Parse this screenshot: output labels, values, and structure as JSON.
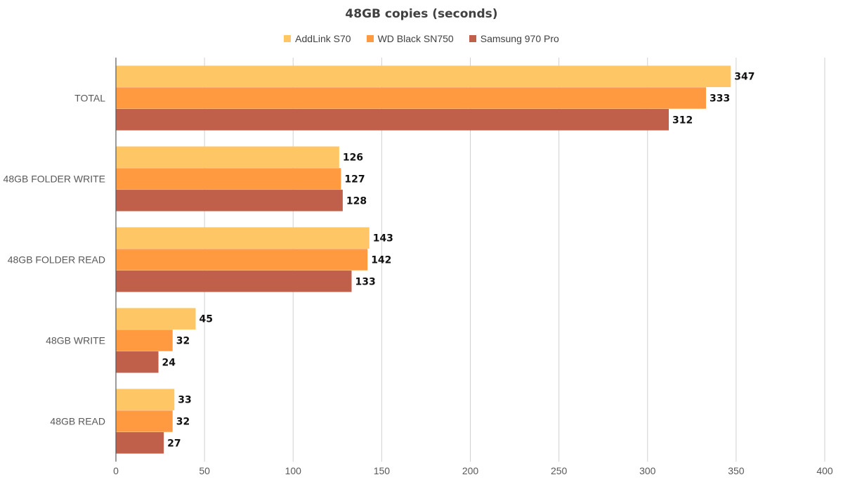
{
  "chart_data": {
    "type": "bar",
    "orientation": "horizontal",
    "title": "48GB copies (seconds)",
    "categories": [
      "TOTAL",
      "48GB FOLDER WRITE",
      "48GB FOLDER READ",
      "48GB WRITE",
      "48GB READ"
    ],
    "series": [
      {
        "name": "AddLink S70",
        "color": "#FFC666",
        "values": [
          347,
          126,
          143,
          45,
          33
        ]
      },
      {
        "name": "WD Black SN750",
        "color": "#FF9A40",
        "values": [
          333,
          127,
          142,
          32,
          32
        ]
      },
      {
        "name": "Samsung 970 Pro",
        "color": "#C0604A",
        "values": [
          312,
          128,
          133,
          24,
          27
        ]
      }
    ],
    "xlim": [
      0,
      400
    ],
    "xticks": [
      0,
      50,
      100,
      150,
      200,
      250,
      300,
      350,
      400
    ],
    "xlabel": "",
    "ylabel": "",
    "grid": true,
    "legend_position": "top",
    "data_labels": true
  }
}
